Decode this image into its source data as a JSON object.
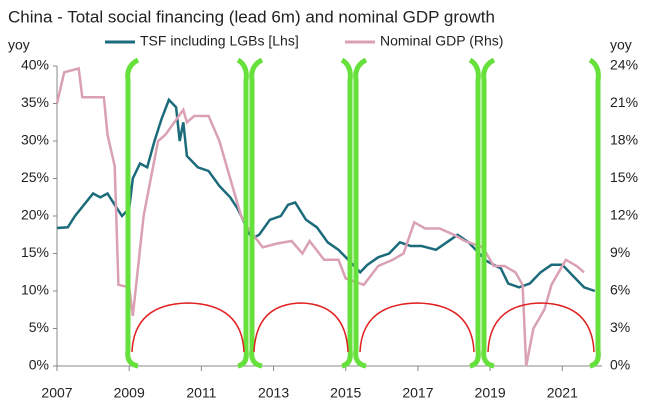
{
  "chart_data": {
    "type": "line",
    "title": "China - Total social financing (lead 6m) and nominal GDP growth",
    "y_label": "yoy",
    "y2_label": "yoy",
    "xlim": [
      2007,
      2022.1
    ],
    "xticks": [
      2007,
      2009,
      2011,
      2013,
      2015,
      2017,
      2019,
      2021
    ],
    "ylim": [
      0,
      40
    ],
    "yticks": [
      {
        "value": 0,
        "label": "0%"
      },
      {
        "value": 5,
        "label": "5%"
      },
      {
        "value": 10,
        "label": "10%"
      },
      {
        "value": 15,
        "label": "15%"
      },
      {
        "value": 20,
        "label": "20%"
      },
      {
        "value": 25,
        "label": "25%"
      },
      {
        "value": 30,
        "label": "30%"
      },
      {
        "value": 35,
        "label": "35%"
      },
      {
        "value": 40,
        "label": "40%"
      }
    ],
    "y2lim": [
      0,
      24
    ],
    "y2ticks": [
      {
        "value": 0,
        "label": "0%"
      },
      {
        "value": 3,
        "label": "3%"
      },
      {
        "value": 6,
        "label": "6%"
      },
      {
        "value": 9,
        "label": "9%"
      },
      {
        "value": 12,
        "label": "12%"
      },
      {
        "value": 15,
        "label": "15%"
      },
      {
        "value": 18,
        "label": "18%"
      },
      {
        "value": 21,
        "label": "21%"
      },
      {
        "value": 24,
        "label": "24%"
      }
    ],
    "legend": "top",
    "series": [
      {
        "name": "TSF including LGBs [Lhs]",
        "color": "#1b6b7b",
        "x": [
          2007.0,
          2007.3,
          2007.5,
          2008.0,
          2008.2,
          2008.4,
          2008.6,
          2008.8,
          2009.0,
          2009.1,
          2009.3,
          2009.5,
          2009.7,
          2009.9,
          2010.1,
          2010.3,
          2010.4,
          2010.5,
          2010.6,
          2010.9,
          2011.2,
          2011.5,
          2011.8,
          2012.0,
          2012.2,
          2012.4,
          2012.6,
          2012.9,
          2013.2,
          2013.4,
          2013.6,
          2013.9,
          2014.2,
          2014.5,
          2014.8,
          2015.1,
          2015.4,
          2015.6,
          2015.9,
          2016.2,
          2016.5,
          2016.8,
          2017.1,
          2017.5,
          2017.8,
          2018.1,
          2018.4,
          2018.7,
          2018.9,
          2019.3,
          2019.5,
          2019.8,
          2020.1,
          2020.4,
          2020.7,
          2021.0,
          2021.3,
          2021.6,
          2021.9
        ],
        "values": [
          18.4,
          18.5,
          20,
          23,
          22.5,
          23,
          21.5,
          20,
          21,
          25,
          27,
          26.5,
          30,
          33,
          35.5,
          34.5,
          30,
          32.5,
          28,
          26.5,
          26,
          24,
          22.5,
          21,
          19,
          17,
          17.5,
          19.5,
          20,
          21.5,
          21.8,
          19.5,
          18.5,
          16.5,
          15.5,
          14,
          12.5,
          13.5,
          14.5,
          15,
          16.5,
          16,
          16,
          15.5,
          16.5,
          17.5,
          16.5,
          15,
          14,
          13,
          11,
          10.5,
          11,
          12.5,
          13.5,
          13.5,
          12,
          10.5,
          10
        ]
      },
      {
        "name": "Nominal GDP (Rhs)",
        "color": "#d9a0b6",
        "axis": "y2",
        "x": [
          2007.0,
          2007.2,
          2007.6,
          2007.7,
          2008.3,
          2008.4,
          2008.6,
          2008.7,
          2009.0,
          2009.1,
          2009.4,
          2009.6,
          2009.8,
          2010.0,
          2010.5,
          2010.6,
          2010.8,
          2011.2,
          2011.5,
          2011.8,
          2012.1,
          2012.3,
          2012.7,
          2013.1,
          2013.5,
          2013.8,
          2014.0,
          2014.4,
          2014.8,
          2015.0,
          2015.5,
          2015.9,
          2016.3,
          2016.6,
          2016.9,
          2017.2,
          2017.6,
          2018.0,
          2018.3,
          2018.8,
          2019.1,
          2019.4,
          2019.7,
          2019.9,
          2020.0,
          2020.2,
          2020.5,
          2020.7,
          2020.9,
          2021.1,
          2021.4,
          2021.6
        ],
        "values": [
          21.0,
          23.5,
          23.8,
          21.5,
          21.5,
          18.5,
          16.0,
          6.5,
          6.3,
          4.0,
          12,
          15,
          18,
          18.5,
          20.5,
          19.5,
          20,
          20,
          18,
          15,
          12,
          11,
          9.5,
          9.8,
          10,
          9,
          10,
          8.5,
          8.5,
          7,
          6.5,
          8,
          8.5,
          9,
          11.5,
          11,
          11,
          10.5,
          10,
          9.5,
          8,
          8,
          7.5,
          6.5,
          0,
          3,
          4.5,
          6.5,
          7.5,
          8.5,
          8,
          7.5
        ]
      }
    ]
  }
}
